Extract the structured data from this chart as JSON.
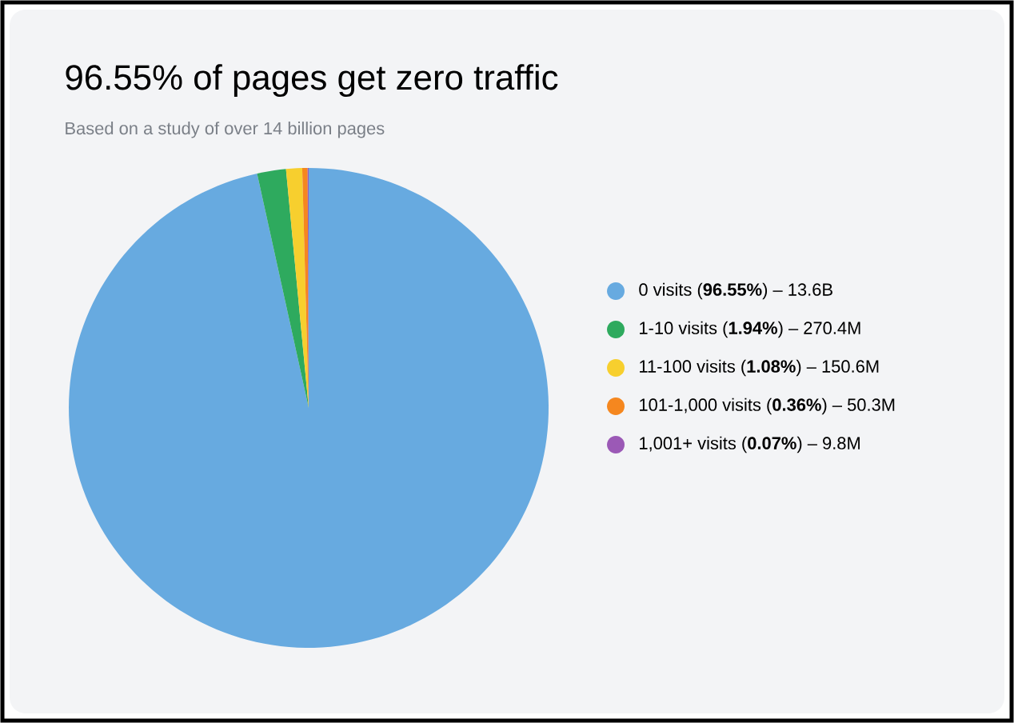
{
  "chart_data": {
    "type": "pie",
    "title": "96.55% of pages get zero traffic",
    "subtitle": "Based on a study of over 14 billion pages",
    "categories": [
      "0 visits (**96.55%**) – 13.6B",
      "1-10 visits (**1.94%**) – 270.4M",
      "11-100 visits (**1.08%**) – 150.6M",
      "101-1,000 visits (**0.36%**) – 50.3M",
      "1,001+ visits (**0.07%**) – 9.8M"
    ],
    "values": [
      96.55,
      1.94,
      1.08,
      0.36,
      0.07
    ],
    "colors": [
      "#67aae0",
      "#2eaa5e",
      "#f7cf2e",
      "#f5871f",
      "#9b59b6"
    ],
    "legend": "right"
  }
}
